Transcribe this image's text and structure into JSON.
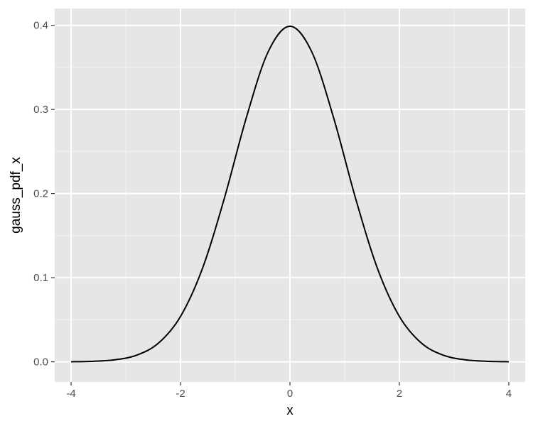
{
  "chart_data": {
    "type": "line",
    "xlabel": "x",
    "ylabel": "gauss_pdf_x",
    "xlim": [
      -4.3,
      4.3
    ],
    "ylim": [
      -0.024,
      0.42
    ],
    "x_ticks": [
      -4,
      -2,
      0,
      2,
      4
    ],
    "x_tick_labels": [
      "-4",
      "-2",
      "0",
      "2",
      "4"
    ],
    "y_ticks": [
      0.0,
      0.1,
      0.2,
      0.3,
      0.4
    ],
    "y_tick_labels": [
      "0.0",
      "0.1",
      "0.2",
      "0.3",
      "0.4"
    ],
    "x_minor_ticks": [
      -3,
      -1,
      1,
      3
    ],
    "y_minor_ticks": [
      0.05,
      0.15,
      0.25,
      0.35
    ],
    "grid": true,
    "legend": "none",
    "series": [
      {
        "x": [
          -4.0,
          -3.6,
          -3.2,
          -2.8,
          -2.4,
          -2.0,
          -1.6,
          -1.2,
          -0.8,
          -0.4,
          0.0,
          0.4,
          0.8,
          1.2,
          1.6,
          2.0,
          2.4,
          2.8,
          3.2,
          3.6,
          4.0
        ],
        "y": [
          0.0001,
          0.0006,
          0.0024,
          0.0079,
          0.0224,
          0.054,
          0.1109,
          0.1942,
          0.2897,
          0.3683,
          0.3989,
          0.3683,
          0.2897,
          0.1942,
          0.1109,
          0.054,
          0.0224,
          0.0079,
          0.0024,
          0.0006,
          0.0001
        ]
      }
    ],
    "colors": {
      "panel_background": "#e6e6e6",
      "grid_major": "#ffffff",
      "grid_minor": "#f2f2f2",
      "line": "#000000",
      "tick": "#333333"
    }
  }
}
